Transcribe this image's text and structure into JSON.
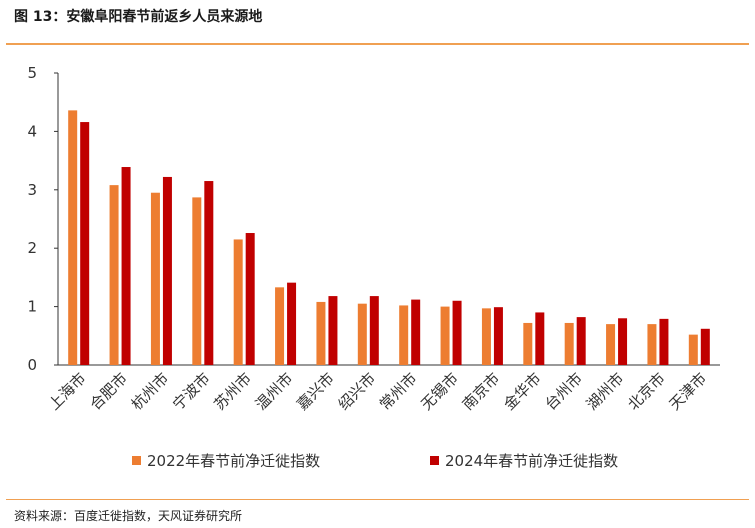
{
  "title": "图 13：安徽阜阳春节前返乡人员来源地",
  "source": "资料来源：百度迁徙指数，天风证券研究所",
  "colors": {
    "series1": "#ed7d31",
    "series2": "#c00000",
    "rule": "#f0a052"
  },
  "chart_data": {
    "type": "bar",
    "categories": [
      "上海市",
      "合肥市",
      "杭州市",
      "宁波市",
      "苏州市",
      "温州市",
      "嘉兴市",
      "绍兴市",
      "常州市",
      "无锡市",
      "南京市",
      "金华市",
      "台州市",
      "湖州市",
      "北京市",
      "天津市"
    ],
    "series": [
      {
        "name": "2022年春节前净迁徙指数",
        "values": [
          4.36,
          3.08,
          2.95,
          2.87,
          2.15,
          1.33,
          1.08,
          1.05,
          1.02,
          1.0,
          0.97,
          0.72,
          0.72,
          0.7,
          0.7,
          0.52
        ]
      },
      {
        "name": "2024年春节前净迁徙指数",
        "values": [
          4.16,
          3.39,
          3.22,
          3.15,
          2.26,
          1.41,
          1.18,
          1.18,
          1.12,
          1.1,
          0.99,
          0.9,
          0.82,
          0.8,
          0.79,
          0.62
        ]
      }
    ],
    "yticks": [
      0,
      1,
      2,
      3,
      4,
      5
    ],
    "ylim": [
      0,
      5
    ],
    "xlabel": "",
    "ylabel": "",
    "grid": false,
    "legend_position": "bottom"
  }
}
